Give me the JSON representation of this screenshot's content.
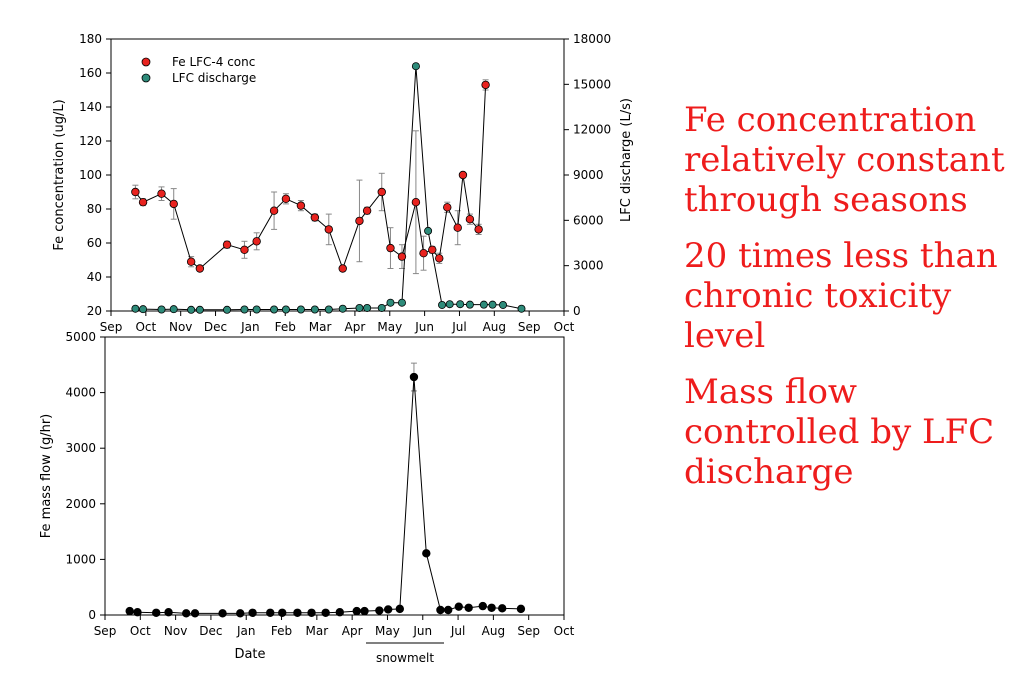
{
  "colors": {
    "conc": "#e8231f",
    "discharge": "#2e8b7a",
    "mass": "#000000",
    "text_red": "#ee1c1c"
  },
  "bullets": [
    "Fe concentration relatively constant through seasons",
    "20 times less than chronic toxicity level",
    "Mass flow controlled by LFC discharge"
  ],
  "chart_data": [
    {
      "type": "scatter",
      "ylabel": "Fe concentration (ug/L)",
      "y2label": "LFC discharge (L/s)",
      "ylim": [
        20,
        180
      ],
      "y2lim": [
        0,
        18000
      ],
      "yticks": [
        20,
        40,
        60,
        80,
        100,
        120,
        140,
        160,
        180
      ],
      "y2ticks": [
        0,
        3000,
        6000,
        9000,
        12000,
        15000,
        18000
      ],
      "xticks": [
        "Sep",
        "Oct",
        "Nov",
        "Dec",
        "Jan",
        "Feb",
        "Mar",
        "Apr",
        "May",
        "Jun",
        "Jul",
        "Aug",
        "Sep",
        "Oct"
      ],
      "legend_position": "top-left",
      "series": [
        {
          "name": "Fe LFC-4 conc",
          "axis": "left",
          "x": [
            0.7,
            0.92,
            1.45,
            1.8,
            2.3,
            2.55,
            3.33,
            3.83,
            4.18,
            4.68,
            5.02,
            5.45,
            5.85,
            6.25,
            6.65,
            7.13,
            7.35,
            7.77,
            8.02,
            8.35,
            8.75,
            8.97,
            9.22,
            9.42,
            9.65,
            9.95,
            10.1,
            10.3,
            10.55,
            10.75,
            11.0,
            11.22,
            11.5,
            11.78
          ],
          "y": [
            90,
            84,
            89,
            83,
            49,
            45,
            59,
            56,
            61,
            79,
            86,
            82,
            75,
            68,
            45,
            73,
            79,
            90,
            57,
            52,
            84,
            54,
            56,
            51,
            81,
            69,
            100,
            74,
            68,
            153,
            null,
            null,
            null,
            null
          ],
          "error": [
            4,
            2,
            4,
            9,
            3,
            1,
            2,
            5,
            5,
            11,
            3,
            3,
            2,
            9,
            1,
            24,
            2,
            11,
            12,
            7,
            42,
            10,
            2,
            3,
            3,
            10,
            1,
            3,
            3,
            3,
            null,
            null,
            null,
            null
          ]
        },
        {
          "name": "LFC discharge",
          "axis": "right",
          "x": [
            0.7,
            0.92,
            1.45,
            1.8,
            2.3,
            2.55,
            3.33,
            3.83,
            4.18,
            4.68,
            5.02,
            5.45,
            5.85,
            6.25,
            6.65,
            7.13,
            7.35,
            7.77,
            8.02,
            8.35,
            8.75,
            9.1,
            9.5,
            9.72,
            10.02,
            10.3,
            10.7,
            10.95,
            11.25,
            11.78
          ],
          "y": [
            150,
            120,
            100,
            120,
            80,
            80,
            80,
            100,
            100,
            100,
            100,
            100,
            100,
            100,
            150,
            200,
            200,
            200,
            550,
            550,
            16200,
            5300,
            400,
            450,
            450,
            420,
            420,
            420,
            400,
            150
          ]
        }
      ]
    },
    {
      "type": "line",
      "ylabel": "Fe mass flow (g/hr)",
      "xlabel": "Date",
      "ylim": [
        0,
        5000
      ],
      "yticks": [
        0,
        1000,
        2000,
        3000,
        4000,
        5000
      ],
      "xticks": [
        "Sep",
        "Oct",
        "Nov",
        "Dec",
        "Jan",
        "Feb",
        "Mar",
        "Apr",
        "May",
        "Jun",
        "Jul",
        "Aug",
        "Sep",
        "Oct"
      ],
      "annotation": "snowmelt",
      "series": [
        {
          "name": "",
          "x": [
            0.7,
            0.92,
            1.45,
            1.8,
            2.3,
            2.55,
            3.33,
            3.83,
            4.18,
            4.68,
            5.02,
            5.45,
            5.85,
            6.25,
            6.65,
            7.13,
            7.35,
            7.77,
            8.02,
            8.35,
            8.75,
            9.1,
            9.5,
            9.72,
            10.02,
            10.3,
            10.7,
            10.95,
            11.25,
            11.78
          ],
          "y": [
            70,
            50,
            40,
            50,
            30,
            30,
            30,
            30,
            40,
            40,
            40,
            40,
            40,
            40,
            50,
            70,
            70,
            80,
            100,
            110,
            4280,
            1110,
            90,
            90,
            150,
            130,
            160,
            130,
            120,
            110
          ],
          "error": [
            null,
            null,
            null,
            null,
            null,
            null,
            null,
            null,
            null,
            null,
            null,
            null,
            null,
            null,
            null,
            null,
            null,
            null,
            null,
            null,
            250,
            null,
            null,
            null,
            null,
            null,
            null,
            null,
            null,
            null
          ]
        }
      ]
    }
  ]
}
